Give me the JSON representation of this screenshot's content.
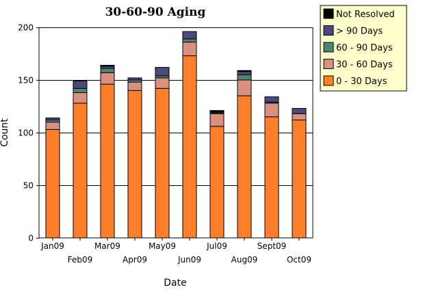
{
  "chart_data": {
    "type": "bar",
    "stacked": true,
    "title": "30-60-90 Aging",
    "xlabel": "Date",
    "ylabel": "Count",
    "ylim": [
      0,
      200
    ],
    "yticks": [
      0,
      50,
      100,
      150,
      200
    ],
    "gridlines": true,
    "legend_position": "top-right",
    "categories": [
      "Jan09",
      "Feb09",
      "Mar09",
      "Apr09",
      "May09",
      "Jun09",
      "Jul09",
      "Aug09",
      "Sept09",
      "Oct09"
    ],
    "series": [
      {
        "name": "0 - 30 Days",
        "color": "#ff7f2a",
        "values": [
          103,
          128,
          146,
          140,
          142,
          173,
          106,
          135,
          115,
          112
        ]
      },
      {
        "name": "30 - 60 Days",
        "color": "#d99080",
        "values": [
          7,
          10,
          11,
          8,
          10,
          13,
          12,
          15,
          13,
          6
        ]
      },
      {
        "name": "60 - 90 Days",
        "color": "#4e8676",
        "values": [
          2,
          4,
          4,
          2,
          2,
          3,
          1,
          5,
          1,
          0
        ]
      },
      {
        "name": "> 90 Days",
        "color": "#4a4a7c",
        "values": [
          2,
          7,
          2,
          2,
          8,
          7,
          0,
          3,
          5,
          5
        ]
      },
      {
        "name": "Not Resolved",
        "color": "#000000",
        "values": [
          0,
          0,
          1,
          0,
          0,
          0,
          2,
          1,
          0,
          0
        ]
      }
    ],
    "legend_order": [
      "Not Resolved",
      "> 90 Days",
      "60 - 90 Days",
      "30 - 60 Days",
      "0 - 30 Days"
    ]
  }
}
